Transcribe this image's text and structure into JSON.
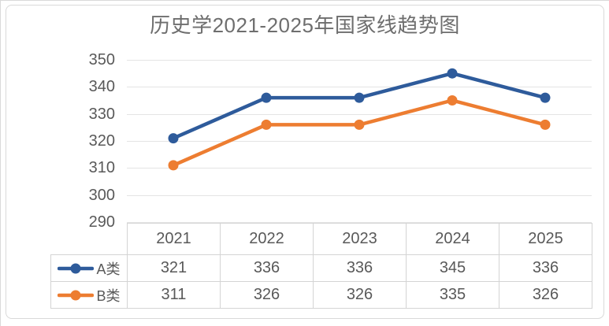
{
  "page": {
    "background": "#ffffff"
  },
  "chart_data": {
    "type": "line",
    "title": "历史学2021-2025年国家线趋势图",
    "categories": [
      "2021",
      "2022",
      "2023",
      "2024",
      "2025"
    ],
    "series": [
      {
        "name": "A类",
        "values": [
          321,
          336,
          336,
          345,
          336
        ],
        "color": "#2e5b9b"
      },
      {
        "name": "B类",
        "values": [
          311,
          326,
          326,
          335,
          326
        ],
        "color": "#ed7d31"
      }
    ],
    "ylim": [
      290,
      350
    ],
    "yticks": [
      350,
      340,
      330,
      320,
      310,
      300,
      290
    ],
    "grid": true,
    "legend_position": "table-row-keys-left",
    "xlabel": "",
    "ylabel": "",
    "marker": "circle"
  },
  "colors": {
    "series_a": "#2e5b9b",
    "series_b": "#ed7d31",
    "title_text": "#6e6e6e",
    "axis_text": "#595959",
    "table_text": "#595959",
    "gridline": "#e4e4e4",
    "table_border": "#d4d4d4",
    "card_border": "#d9d9d9"
  }
}
